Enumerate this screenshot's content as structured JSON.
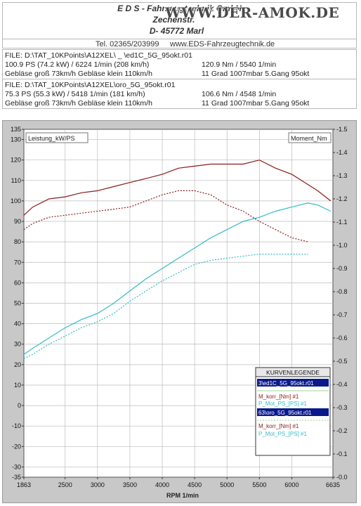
{
  "header": {
    "line1": "E D S - Fahrzeugtechnik GmbH",
    "line2": "Zechenstr.",
    "line3": "D- 45772 Marl",
    "phone": "Tel. 02365/203999",
    "website": "www.EDS-Fahrzeugtechnik.de",
    "watermark": "WWW.DER-AMOK.DE"
  },
  "files": [
    {
      "file": "FILE: D:\\TAT_10KPoints\\A12XEL\\          _     \\ed1C_5G_95okt.r01",
      "stats1": "100.9 PS  (74.2 kW) / 6224 1/min (208 km/h)",
      "stats2": "120.9 Nm / 5540 1/min",
      "cond1": "Gebläse groß 73km/h Gebläse klein 110km/h",
      "cond2": "11 Grad 1007mbar  5.Gang 95okt"
    },
    {
      "file": "FILE: D:\\TAT_10KPoints\\A12XEL\\oro_5G_95okt.r01",
      "stats1": "75.3 PS  (55.3 kW) / 5418 1/min (181 km/h)",
      "stats2": "106.6 Nm / 4548 1/min",
      "cond1": "Gebläse groß 73km/h Gebläse klein 110km/h",
      "cond2": "11 Grad 1007mbar  5.Gang 95okt"
    }
  ],
  "chart_data": {
    "type": "line",
    "left_axis_label": "Leistung_kW/PS",
    "right_axis_label": "Moment_Nm",
    "xlabel": "RPM  1/min",
    "xlim": [
      1863,
      6635
    ],
    "ylim_left": [
      -35,
      135
    ],
    "ylim_right": [
      0.0,
      1.5
    ],
    "x_ticks": [
      "1863",
      "2500",
      "3000",
      "3500",
      "4000",
      "4500",
      "5000",
      "5500",
      "6000",
      "6635"
    ],
    "y_left_ticks": [
      "135",
      "130",
      "120",
      "110",
      "100",
      "90",
      "80",
      "70",
      "60",
      "50",
      "40",
      "30",
      "20",
      "10",
      "0",
      "-10",
      "-20",
      "-30",
      "-35"
    ],
    "y_right_ticks": [
      "1.5",
      "1.4",
      "1.3",
      "1.2",
      "1.1",
      "1.0",
      "0.9",
      "0.8",
      "0.7",
      "0.6",
      "0.5",
      "0.4",
      "0.3",
      "0.2",
      "0.1",
      "0.0"
    ],
    "grid": true,
    "legend": {
      "title": "KURVENLEGENDE",
      "placement": "bottom-right",
      "groups": [
        {
          "file": "3\\ed1C_5G_95okt.r01",
          "entries": [
            "M_korr_[Nm] #1",
            "P_Mot_PS_[PS] #1"
          ]
        },
        {
          "file": "63\\oro_5G_95okt.r01",
          "entries": [
            "M_korr_[Nm] #1",
            "P_Mot_PS_[PS] #1"
          ]
        }
      ]
    },
    "colors": {
      "torque": "#8b1a1a",
      "power": "#33bcc8",
      "legend_file_bg": "#0a1a8a"
    },
    "series": [
      {
        "name": "M_korr_[Nm] #1",
        "file": 1,
        "axis": "left",
        "style": "solid",
        "color": "#8b1a1a",
        "x": [
          1863,
          2000,
          2250,
          2500,
          2750,
          3000,
          3250,
          3500,
          3750,
          4000,
          4250,
          4500,
          4750,
          5000,
          5250,
          5500,
          5750,
          6000,
          6250,
          6400,
          6600
        ],
        "y": [
          93,
          97,
          101,
          102,
          104,
          105,
          107,
          109,
          111,
          113,
          116,
          117,
          118,
          118,
          118,
          120,
          116,
          113,
          108,
          105,
          100
        ]
      },
      {
        "name": "P_Mot_PS_[PS] #1",
        "file": 1,
        "axis": "left",
        "style": "solid",
        "color": "#33bcc8",
        "x": [
          1863,
          2000,
          2250,
          2500,
          2750,
          3000,
          3250,
          3500,
          3750,
          4000,
          4250,
          4500,
          4750,
          5000,
          5250,
          5500,
          5750,
          6000,
          6250,
          6400,
          6600
        ],
        "y": [
          25,
          28,
          33,
          38,
          42,
          45,
          50,
          56,
          62,
          67,
          72,
          77,
          82,
          86,
          90,
          92,
          95,
          97,
          99,
          98,
          95
        ]
      },
      {
        "name": "M_korr_[Nm] #1",
        "file": 2,
        "axis": "left",
        "style": "dotted",
        "color": "#8b1a1a",
        "x": [
          1863,
          2000,
          2250,
          2500,
          2750,
          3000,
          3250,
          3500,
          3750,
          4000,
          4250,
          4500,
          4750,
          5000,
          5250,
          5500,
          5750,
          6000,
          6250
        ],
        "y": [
          86,
          89,
          92,
          93,
          94,
          95,
          96,
          97,
          100,
          103,
          105,
          105,
          103,
          98,
          95,
          90,
          86,
          82,
          80
        ]
      },
      {
        "name": "P_Mot_PS_[PS] #1",
        "file": 2,
        "axis": "left",
        "style": "dotted",
        "color": "#33bcc8",
        "x": [
          1863,
          2000,
          2250,
          2500,
          2750,
          3000,
          3250,
          3500,
          3750,
          4000,
          4250,
          4500,
          4750,
          5000,
          5250,
          5500,
          5750,
          6000,
          6250
        ],
        "y": [
          23,
          25,
          30,
          34,
          38,
          41,
          45,
          51,
          56,
          61,
          65,
          69,
          71,
          72,
          73,
          74,
          74,
          74,
          74
        ]
      }
    ]
  }
}
